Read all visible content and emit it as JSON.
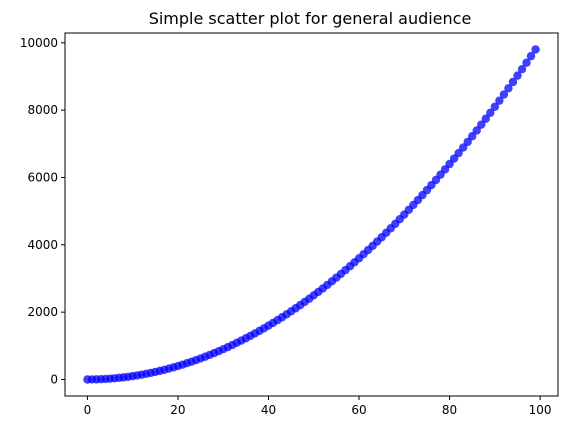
{
  "chart_data": {
    "type": "scatter",
    "title": "Simple scatter plot for general audience",
    "xlabel": "",
    "ylabel": "",
    "x_ticks": [
      0,
      20,
      40,
      60,
      80,
      100
    ],
    "y_ticks": [
      0,
      2000,
      4000,
      6000,
      8000,
      10000
    ],
    "xlim": [
      -4.95,
      103.95
    ],
    "ylim": [
      -490.05,
      10291.05
    ],
    "grid": false,
    "series": [
      {
        "marker_color": "#0000ff",
        "x": [
          0,
          1,
          2,
          3,
          4,
          5,
          6,
          7,
          8,
          9,
          10,
          11,
          12,
          13,
          14,
          15,
          16,
          17,
          18,
          19,
          20,
          21,
          22,
          23,
          24,
          25,
          26,
          27,
          28,
          29,
          30,
          31,
          32,
          33,
          34,
          35,
          36,
          37,
          38,
          39,
          40,
          41,
          42,
          43,
          44,
          45,
          46,
          47,
          48,
          49,
          50,
          51,
          52,
          53,
          54,
          55,
          56,
          57,
          58,
          59,
          60,
          61,
          62,
          63,
          64,
          65,
          66,
          67,
          68,
          69,
          70,
          71,
          72,
          73,
          74,
          75,
          76,
          77,
          78,
          79,
          80,
          81,
          82,
          83,
          84,
          85,
          86,
          87,
          88,
          89,
          90,
          91,
          92,
          93,
          94,
          95,
          96,
          97,
          98,
          99
        ],
        "y": [
          0,
          1,
          4,
          9,
          16,
          25,
          36,
          49,
          64,
          81,
          100,
          121,
          144,
          169,
          196,
          225,
          256,
          289,
          324,
          361,
          400,
          441,
          484,
          529,
          576,
          625,
          676,
          729,
          784,
          841,
          900,
          961,
          1024,
          1089,
          1156,
          1225,
          1296,
          1369,
          1444,
          1521,
          1600,
          1681,
          1764,
          1849,
          1936,
          2025,
          2116,
          2209,
          2304,
          2401,
          2500,
          2601,
          2704,
          2809,
          2916,
          3025,
          3136,
          3249,
          3364,
          3481,
          3600,
          3721,
          3844,
          3969,
          4096,
          4225,
          4356,
          4489,
          4624,
          4761,
          4900,
          5041,
          5184,
          5329,
          5476,
          5625,
          5776,
          5929,
          6084,
          6241,
          6400,
          6561,
          6724,
          6889,
          7056,
          7225,
          7396,
          7569,
          7744,
          7921,
          8100,
          8281,
          8464,
          8649,
          8836,
          9025,
          9216,
          9409,
          9604,
          9801
        ]
      }
    ]
  }
}
